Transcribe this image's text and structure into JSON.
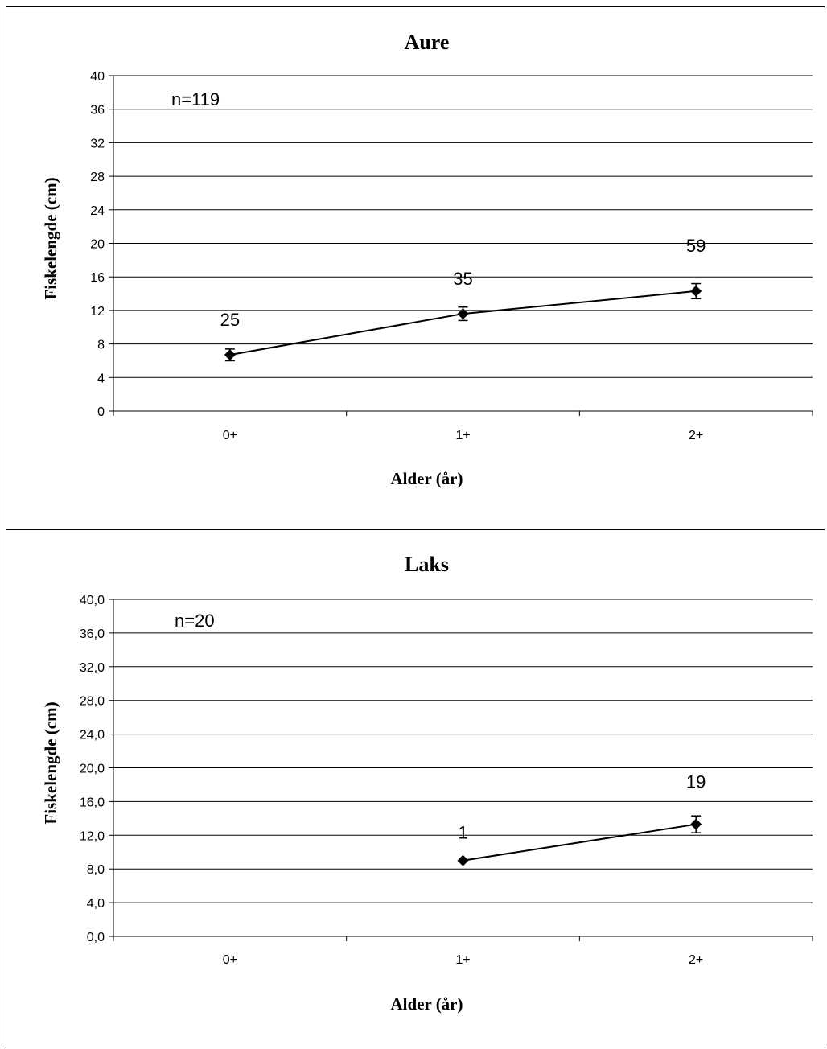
{
  "chart_data": [
    {
      "id": "aure",
      "type": "line",
      "title": "Aure",
      "xlabel": "Alder (år)",
      "ylabel": "Fiskelengde (cm)",
      "categories": [
        "0+",
        "1+",
        "2+"
      ],
      "ylim": [
        0,
        40
      ],
      "yticks": [
        0,
        4,
        8,
        12,
        16,
        20,
        24,
        28,
        32,
        36,
        40
      ],
      "ytick_labels": [
        "0",
        "4",
        "8",
        "12",
        "16",
        "20",
        "24",
        "28",
        "32",
        "36",
        "40"
      ],
      "grid": true,
      "series": [
        {
          "values": [
            6.7,
            11.6,
            14.3
          ],
          "errors": [
            0.7,
            0.8,
            0.9
          ],
          "counts": [
            "25",
            "35",
            "59"
          ]
        }
      ],
      "annotation": "n=119"
    },
    {
      "id": "laks",
      "type": "line",
      "title": "Laks",
      "xlabel": "Alder (år)",
      "ylabel": "Fiskelengde (cm)",
      "categories": [
        "0+",
        "1+",
        "2+"
      ],
      "ylim": [
        0,
        40
      ],
      "yticks": [
        0,
        4,
        8,
        12,
        16,
        20,
        24,
        28,
        32,
        36,
        40
      ],
      "ytick_labels": [
        "0,0",
        "4,0",
        "8,0",
        "12,0",
        "16,0",
        "20,0",
        "24,0",
        "28,0",
        "32,0",
        "36,0",
        "40,0"
      ],
      "grid": true,
      "series": [
        {
          "values": [
            null,
            9.0,
            13.3
          ],
          "errors": [
            null,
            0,
            1.0
          ],
          "counts": [
            "",
            "1",
            "19"
          ]
        }
      ],
      "annotation": "n=20"
    }
  ]
}
